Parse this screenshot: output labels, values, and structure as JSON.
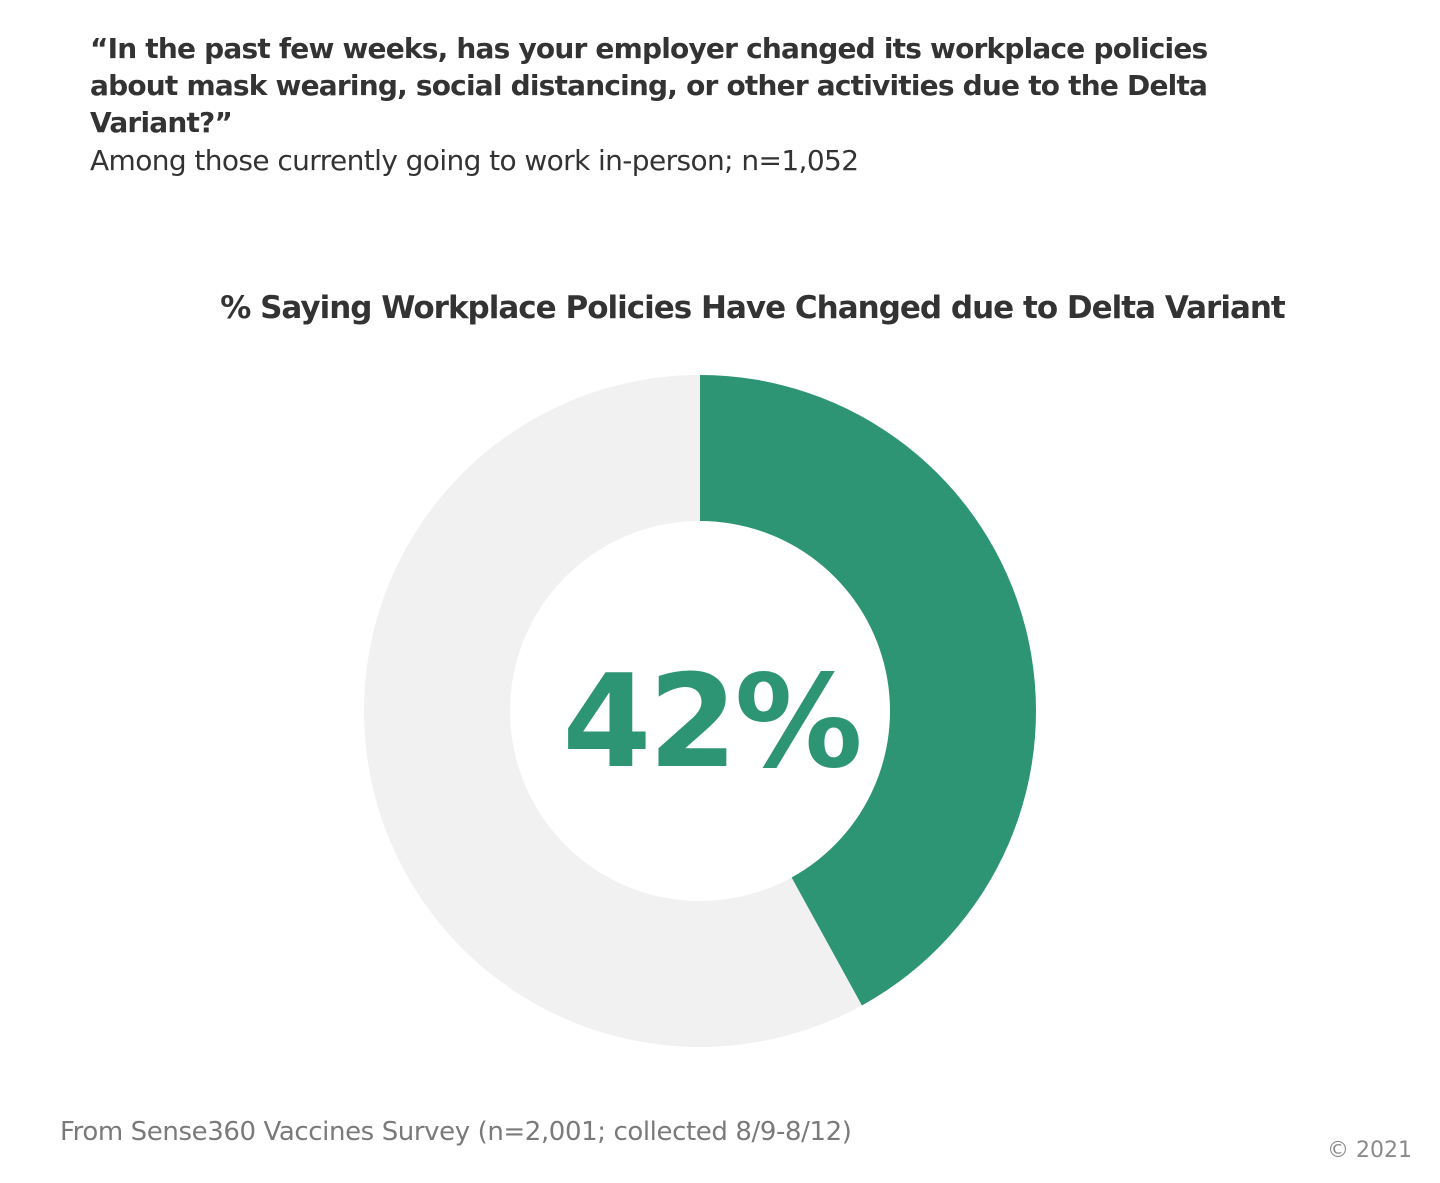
{
  "question": "“In the past few weeks, has your employer changed its workplace policies about mask wearing, social distancing, or other activities due to the Delta Variant?”",
  "subtitle": "Among those currently going to work in-person; n=1,052",
  "chart_data": {
    "type": "pie",
    "title": "% Saying Workplace Policies Have Changed due to Delta Variant",
    "center_label": "42%",
    "slices": [
      {
        "value": 42,
        "color": "#2e9574"
      },
      {
        "value": 58,
        "color": "#f1f1f1"
      }
    ]
  },
  "footer": {
    "source": "From Sense360 Vaccines Survey (n=2,001; collected 8/9-8/12)",
    "copyright": "© 2021"
  }
}
